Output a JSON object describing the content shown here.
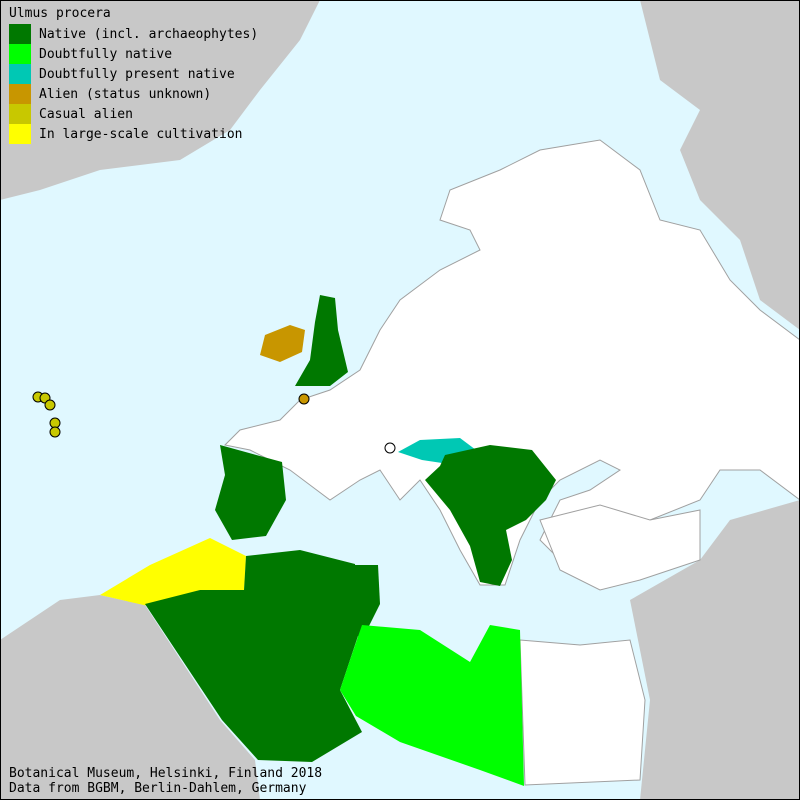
{
  "map": {
    "title": "Ulmus procera",
    "colors": {
      "sea": "#e0f8ff",
      "land_outside": "#c8c8c8",
      "land_inside": "#ffffff",
      "border": "#a0a0a0"
    },
    "legend": [
      {
        "label": "Native (incl. archaeophytes)",
        "color": "#007800"
      },
      {
        "label": "Doubtfully native",
        "color": "#00ff00"
      },
      {
        "label": "Doubtfully present native",
        "color": "#00c8b4"
      },
      {
        "label": "Alien (status unknown)",
        "color": "#c89600"
      },
      {
        "label": "Casual alien",
        "color": "#c8c800"
      },
      {
        "label": "In large-scale cultivation",
        "color": "#ffff00"
      }
    ],
    "regions": [
      {
        "name": "Great Britain",
        "status": "Native (incl. archaeophytes)"
      },
      {
        "name": "Ireland",
        "status": "Alien (status unknown)"
      },
      {
        "name": "Spain",
        "status": "Native (incl. archaeophytes)"
      },
      {
        "name": "Morocco",
        "status": "In large-scale cultivation"
      },
      {
        "name": "Algeria",
        "status": "Native (incl. archaeophytes)"
      },
      {
        "name": "Tunisia",
        "status": "Native (incl. archaeophytes)"
      },
      {
        "name": "Libya",
        "status": "Doubtfully native"
      },
      {
        "name": "Austria",
        "status": "Doubtfully present native"
      },
      {
        "name": "Balkans",
        "status": "Native (incl. archaeophytes)"
      }
    ],
    "footer": {
      "line1": "Botanical Museum, Helsinki, Finland 2018",
      "line2": "Data from BGBM, Berlin-Dahlem, Germany"
    }
  }
}
